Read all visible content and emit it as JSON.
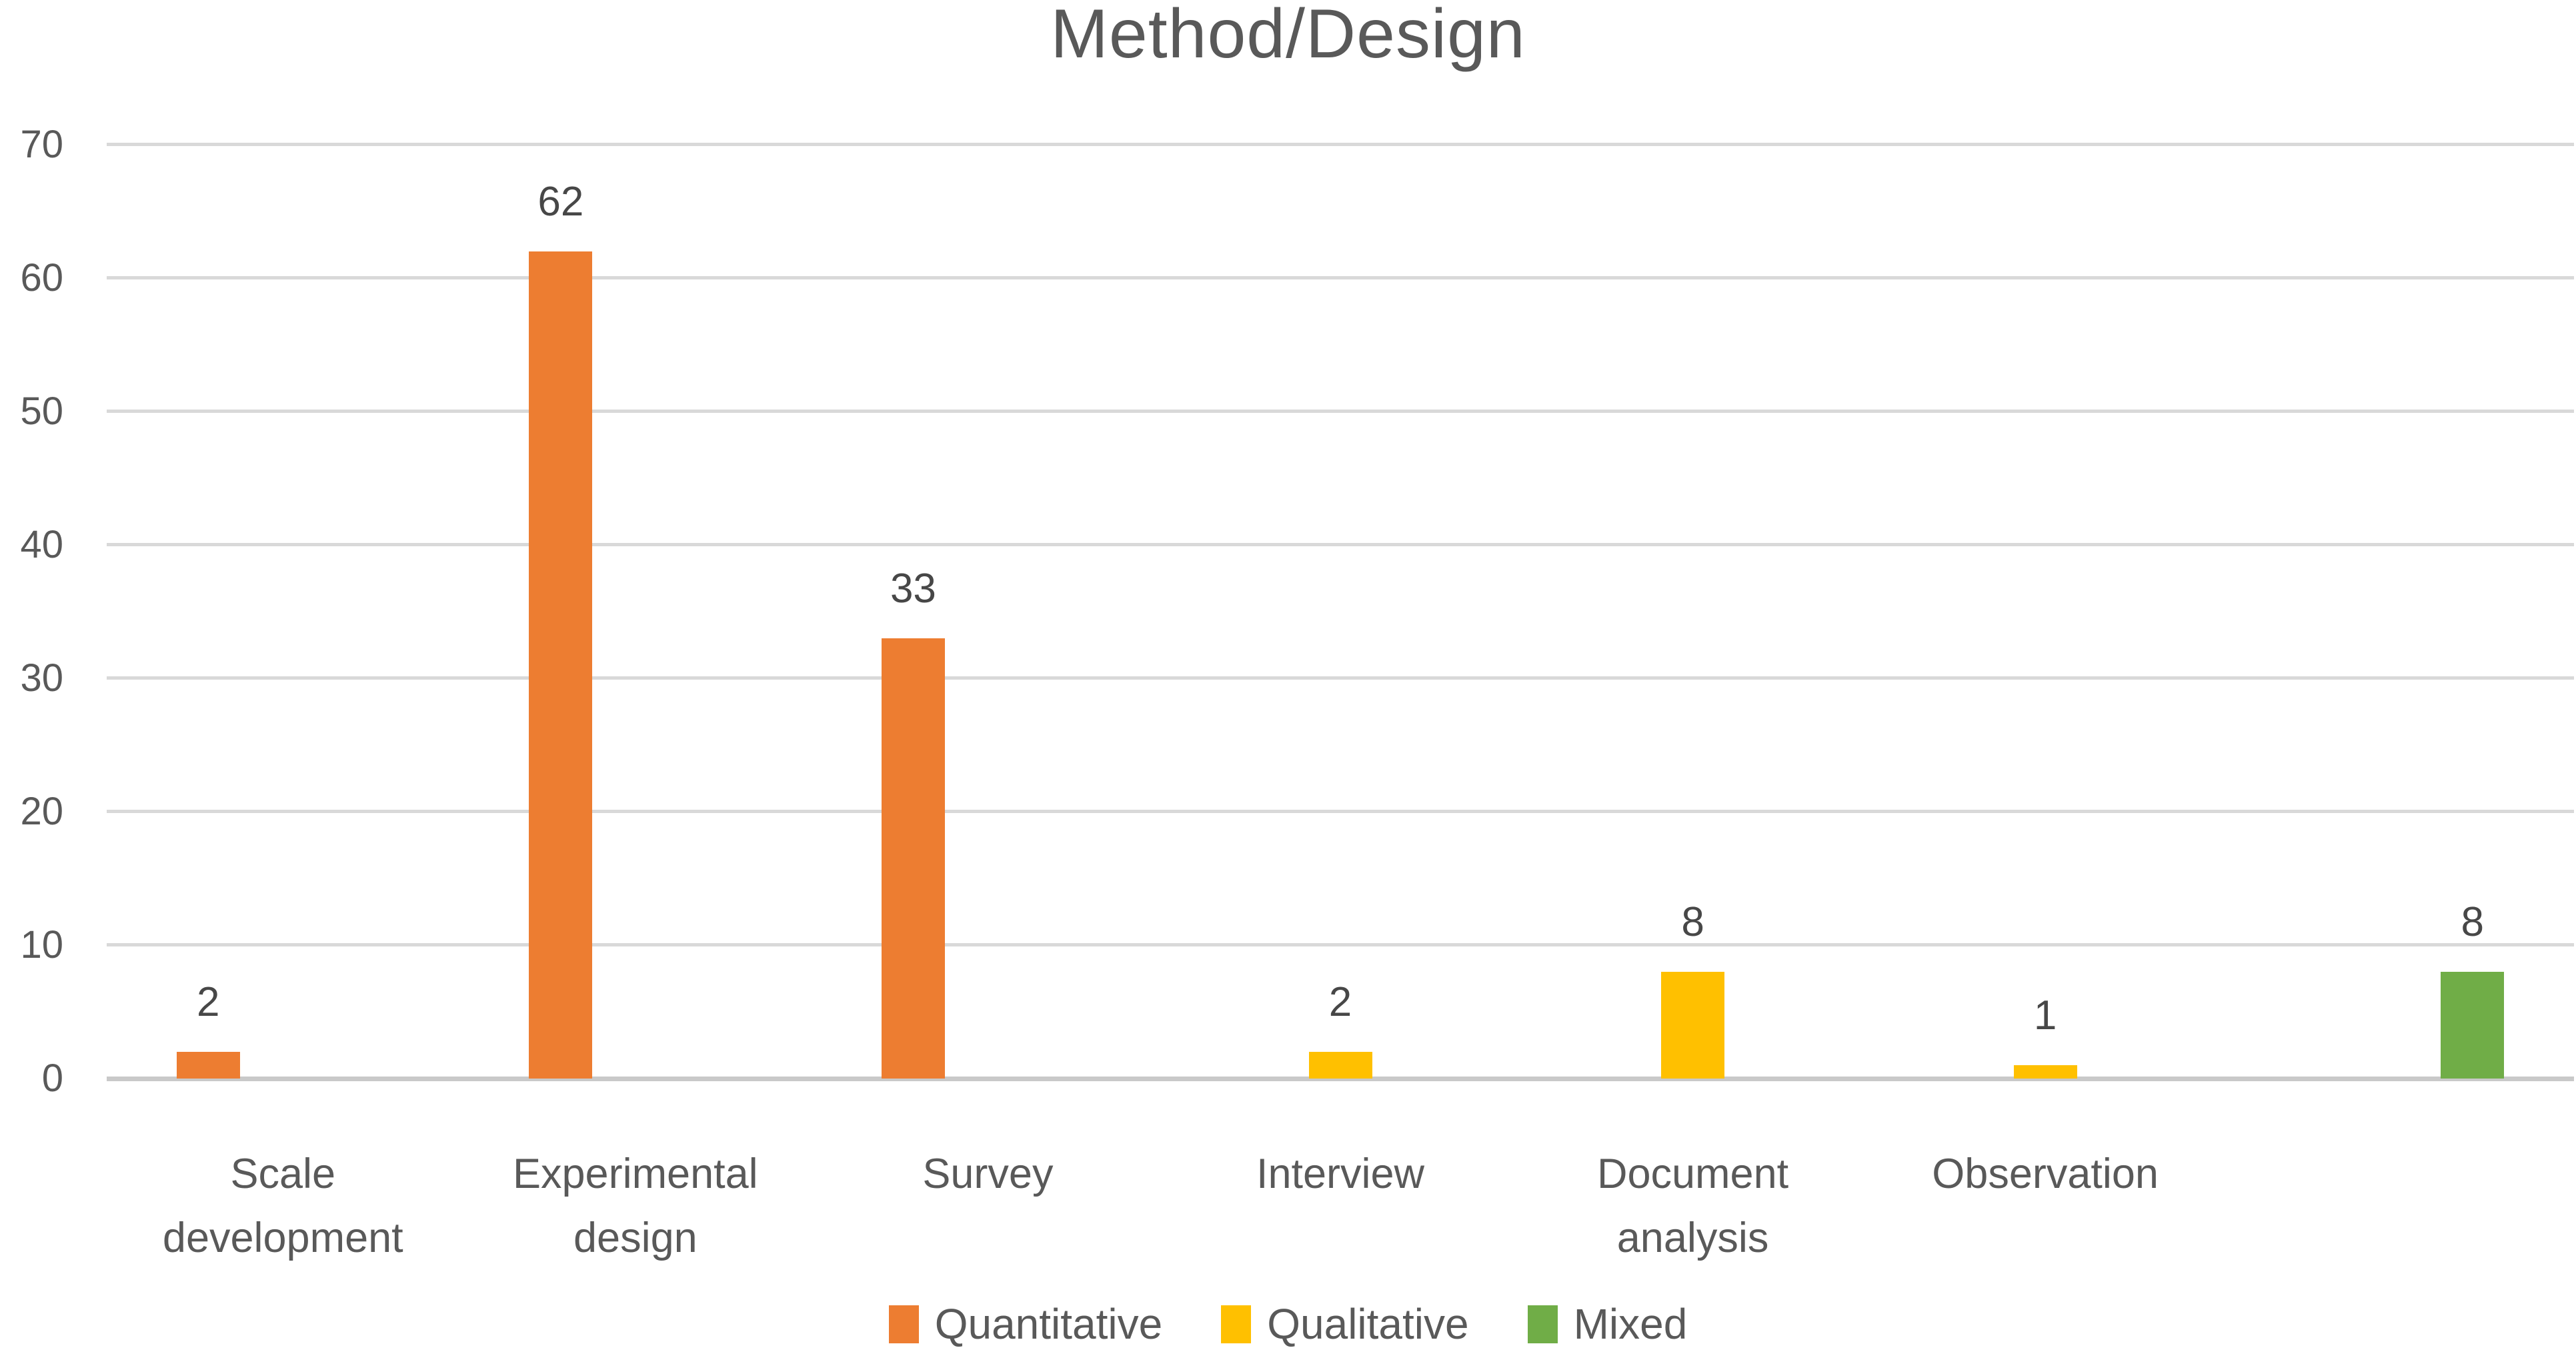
{
  "chart_data": {
    "type": "bar",
    "title": "Method/Design",
    "xlabel": "",
    "ylabel": "",
    "categories": [
      "Scale development",
      "Experimental design",
      "Survey",
      "Interview",
      "Document analysis",
      "Observation",
      ""
    ],
    "series": [
      {
        "name": "Quantitative",
        "color": "#ED7D31",
        "values": [
          2,
          62,
          33,
          null,
          null,
          null,
          null
        ]
      },
      {
        "name": "Qualitative",
        "color": "#FFC000",
        "values": [
          null,
          null,
          null,
          2,
          8,
          1,
          null
        ]
      },
      {
        "name": "Mixed",
        "color": "#70AD47",
        "values": [
          null,
          null,
          null,
          null,
          null,
          null,
          8
        ]
      }
    ],
    "yticks": [
      0,
      10,
      20,
      30,
      40,
      50,
      60,
      70
    ],
    "ylim": [
      0,
      70
    ],
    "grid": "horizontal",
    "legend_position": "bottom",
    "data_labels": true
  },
  "style": {
    "gridline_color": "#D9D9D9",
    "axis_line_color": "#C9C9C9",
    "text_color": "#595959",
    "data_label_color": "#474747",
    "background": "#FFFFFF"
  }
}
